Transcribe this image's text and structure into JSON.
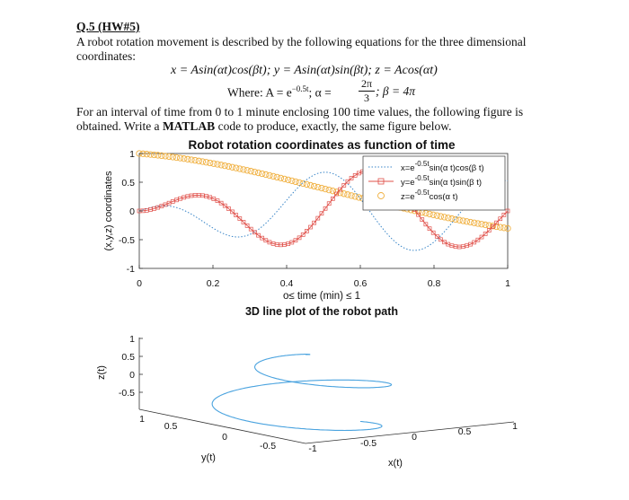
{
  "question": {
    "heading": "Q.5 (HW#5)",
    "intro_line1": "A robot rotation movement is described by the following equations for the three dimensional",
    "intro_line2": "coordinates:",
    "equations": "x = Asin(αt)cos(βt);  y = Asin(αt)sin(βt);  z = Acos(αt)",
    "where_prefix": "Where: A = e",
    "where_exp": "−0.5t",
    "alpha_part": "; α =",
    "alpha_num": "2π",
    "alpha_den": "3",
    "beta_part": ";  β = 4π",
    "para_line1": "For an interval of time from 0 to 1 minute enclosing 100 time values, the following figure is",
    "para_line2_a": "obtained. Write a ",
    "para_line2_bold": "MATLAB",
    "para_line2_b": " code to produce, exactly, the same figure below."
  },
  "chart_data": [
    {
      "type": "line",
      "title": "Robot rotation coordinates as function of time",
      "xlabel": "o≤ time (min) ≤ 1",
      "ylabel": "(x,y,z) coordinates",
      "xlim": [
        0,
        1
      ],
      "ylim": [
        -1,
        1
      ],
      "xticks": [
        "0",
        "0.2",
        "0.4",
        "0.6",
        "0.8",
        "1"
      ],
      "yticks": [
        "1",
        "0.5",
        "0",
        "-0.5",
        "-1"
      ],
      "grid": false,
      "legend_placement": "top-right",
      "legend": [
        "x=e^-0.5t sin(α t)cos(β t)",
        "y=e^-0.5t sin(α t)sin(β t)",
        "z=e^-0.5t cos(α t)"
      ],
      "legend_parts": [
        {
          "pre": "x=e",
          "sup": "-0.5t",
          "post": "sin(α t)cos(β t)"
        },
        {
          "pre": "y=e",
          "sup": "-0.5t",
          "post": "sin(α t)sin(β t)"
        },
        {
          "pre": "z=e",
          "sup": "-0.5t",
          "post": "cos(α t)"
        }
      ],
      "n_points": 100,
      "t_range": [
        0,
        1
      ],
      "params": {
        "A_decay": -0.5,
        "alpha": 2.0944,
        "beta": 12.5664
      },
      "series": [
        {
          "name": "x=e^-0.5t sin(α t)cos(β t)",
          "style": "dotted",
          "color": "#3a86c8"
        },
        {
          "name": "y=e^-0.5t sin(α t)sin(β t)",
          "style": "line-square",
          "color": "#e0504a"
        },
        {
          "name": "z=e^-0.5t cos(α t)",
          "style": "circles",
          "color": "#f0b040"
        }
      ]
    },
    {
      "type": "line3d",
      "title": "3D line plot of the robot path",
      "xlabel": "x(t)",
      "ylabel": "y(t)",
      "zlabel": "z(t)",
      "xticks": [
        "-1",
        "-0.5",
        "0",
        "0.5",
        "1"
      ],
      "yticks": [
        "1",
        "0.5",
        "0",
        "-0.5"
      ],
      "zticks": [
        "1",
        "0.5",
        "0",
        "-0.5"
      ],
      "color": "#4aa3df"
    }
  ]
}
